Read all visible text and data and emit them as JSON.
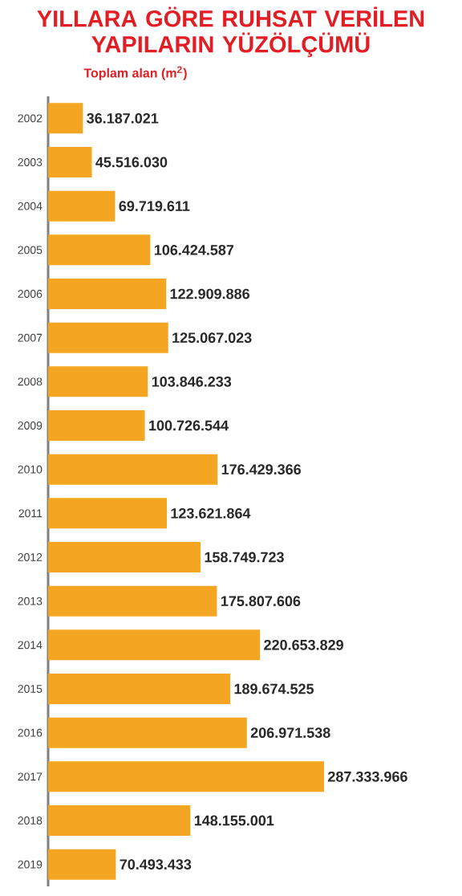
{
  "chart_data": {
    "type": "bar",
    "orientation": "horizontal",
    "title": "YILLARA GÖRE RUHSAT VERİLEN YAPILARIN YÜZÖLÇÜMÜ",
    "subtitle": "Toplam alan (m$^{2}$)",
    "categories": [
      "2002",
      "2003",
      "2004",
      "2005",
      "2006",
      "2007",
      "2008",
      "2009",
      "2010",
      "2011",
      "2012",
      "2013",
      "2014",
      "2015",
      "2016",
      "2017",
      "2018",
      "2019"
    ],
    "values": [
      36187021,
      45516030,
      69719611,
      106424587,
      122909886,
      125067023,
      103846233,
      100726544,
      176429366,
      123621864,
      158749723,
      175807606,
      220653829,
      189674525,
      206971538,
      287333966,
      148155001,
      70493433
    ],
    "value_labels": [
      "36.187.021",
      "45.516.030",
      "69.719.611",
      "106.424.587",
      "122.909.886",
      "125.067.023",
      "103.846.233",
      "100.726.544",
      "176.429.366",
      "123.621.864",
      "158.749.723",
      "175.807.606",
      "220.653.829",
      "189.674.525",
      "206.971.538",
      "287.333.966",
      "148.155.001",
      "70.493.433"
    ],
    "colors": [
      "#f4a623",
      "#f4a623",
      "#f4a623",
      "#f4a623",
      "#f4a623",
      "#f4a623",
      "#f4a623",
      "#f4a623",
      "#f4a623",
      "#f4a623",
      "#f4a623",
      "#f4a623",
      "#f4a623",
      "#f4a623",
      "#f4a623",
      "#f4a623",
      "#f4a623",
      "#f4a623"
    ]
  }
}
